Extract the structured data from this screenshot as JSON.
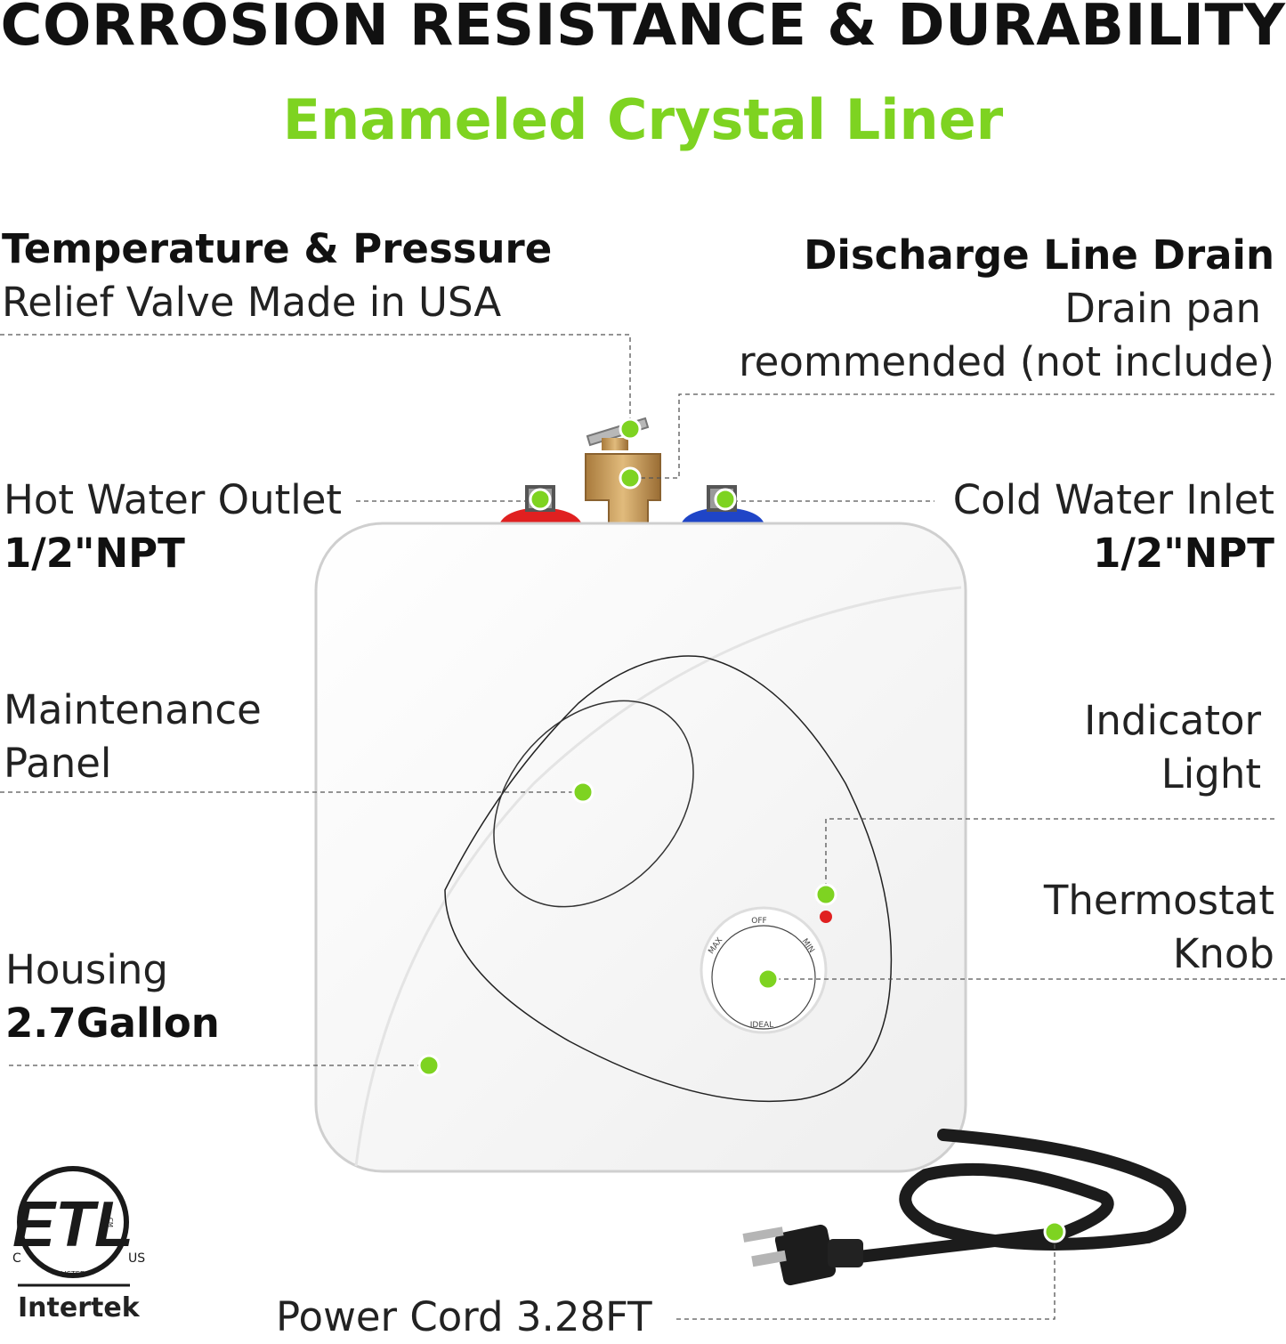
{
  "header": {
    "headline": "CORROSION RESISTANCE & DURABILITY",
    "subhead": "Enameled Crystal Liner"
  },
  "callouts": {
    "tp_valve": {
      "title": "Temperature & Pressure",
      "sub": "Relief Valve Made in USA"
    },
    "discharge": {
      "title": "Discharge Line Drain",
      "sub1": "Drain pan",
      "sub2": "reommended (not include)"
    },
    "hot_outlet": {
      "title": "Hot Water Outlet",
      "sub": "1/2\"NPT"
    },
    "cold_inlet": {
      "title": "Cold Water Inlet",
      "sub": "1/2\"NPT"
    },
    "maintenance": {
      "line1": "Maintenance",
      "line2": "Panel"
    },
    "indicator": {
      "line1": "Indicator",
      "line2": "Light"
    },
    "thermostat": {
      "line1": "Thermostat",
      "line2": "Knob"
    },
    "housing": {
      "line1": "Housing",
      "line2": "2.7Gallon"
    },
    "power_cord": {
      "label": "Power Cord 3.28FT"
    }
  },
  "knob": {
    "off": "OFF",
    "max": "MAX",
    "min": "MIN",
    "ideal": "IDEAL"
  },
  "cert": {
    "mark": "ETL",
    "c": "C",
    "us": "US",
    "cm": "CM",
    "listed": "LISTED",
    "brand": "Intertek"
  },
  "colors": {
    "accent": "#7ed321",
    "hot": "#e02020",
    "cold": "#1f45c7",
    "brass": "#c9a063"
  }
}
